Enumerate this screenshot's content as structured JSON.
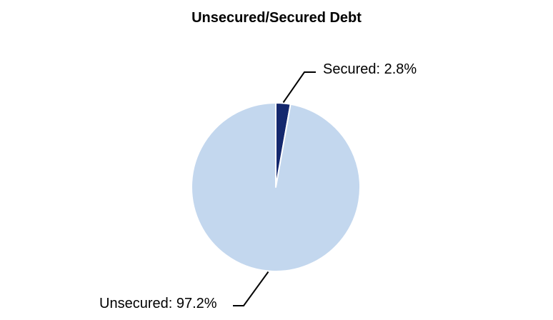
{
  "chart_data": {
    "type": "pie",
    "title": "Unsecured/Secured Debt",
    "slices": [
      {
        "name": "Secured",
        "value_pct": 2.8,
        "display_text": "Secured: 2.8%",
        "color": "#14286e"
      },
      {
        "name": "Unsecured",
        "value_pct": 97.2,
        "display_text": "Unsecured: 97.2%",
        "color": "#c3d7ee"
      }
    ],
    "start_angle_deg": 0,
    "direction": "clockwise",
    "slice_separator_color": "#ffffff",
    "leader_line_color": "#000000",
    "label_color": "#000000",
    "title_color": "#000000",
    "background_color": "#ffffff",
    "legend": "none"
  }
}
